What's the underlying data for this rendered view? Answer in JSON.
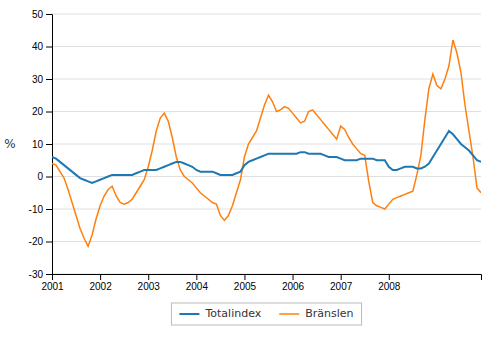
{
  "chart_data": {
    "type": "line",
    "y_label": "%",
    "ylim": [
      -30,
      50
    ],
    "yticks": [
      -30,
      -20,
      -10,
      0,
      10,
      20,
      30,
      40,
      50
    ],
    "grid": true,
    "legend": "bottom",
    "categories": [
      "2001",
      null,
      null,
      null,
      null,
      null,
      null,
      null,
      null,
      null,
      null,
      null,
      "2002",
      null,
      null,
      null,
      null,
      null,
      null,
      null,
      null,
      null,
      null,
      null,
      "2003",
      null,
      null,
      null,
      null,
      null,
      null,
      null,
      null,
      null,
      null,
      null,
      "2004",
      null,
      null,
      null,
      null,
      null,
      null,
      null,
      null,
      null,
      null,
      null,
      "2005",
      null,
      null,
      null,
      null,
      null,
      null,
      null,
      null,
      null,
      null,
      null,
      "2006",
      null,
      null,
      null,
      null,
      null,
      null,
      null,
      null,
      null,
      null,
      null,
      "2007",
      null,
      null,
      null,
      null,
      null,
      null,
      null,
      null,
      null,
      null,
      null,
      "2008",
      null,
      null,
      null,
      null,
      null,
      null,
      null,
      null,
      null,
      null,
      null,
      null,
      null,
      null,
      null,
      null,
      null,
      null,
      null,
      null,
      null,
      null,
      null
    ],
    "series": [
      {
        "name": "Totalindex",
        "values": [
          6.0,
          5.5,
          4.5,
          3.5,
          2.5,
          1.5,
          0.5,
          -0.5,
          -1.0,
          -1.5,
          -2.0,
          -1.5,
          -1.0,
          -0.5,
          0.0,
          0.5,
          0.5,
          0.5,
          0.5,
          0.5,
          0.5,
          1.0,
          1.5,
          2.0,
          2.0,
          2.0,
          2.0,
          2.5,
          3.0,
          3.5,
          4.0,
          4.5,
          4.5,
          4.0,
          3.5,
          3.0,
          2.0,
          1.5,
          1.5,
          1.5,
          1.5,
          1.0,
          0.5,
          0.5,
          0.5,
          0.5,
          1.0,
          1.5,
          3.5,
          4.5,
          5.0,
          5.5,
          6.0,
          6.5,
          7.0,
          7.0,
          7.0,
          7.0,
          7.0,
          7.0,
          7.0,
          7.0,
          7.5,
          7.5,
          7.0,
          7.0,
          7.0,
          7.0,
          6.5,
          6.0,
          6.0,
          6.0,
          5.5,
          5.0,
          5.0,
          5.0,
          5.0,
          5.5,
          5.5,
          5.5,
          5.5,
          5.0,
          5.0,
          5.0,
          3.0,
          2.0,
          2.0,
          2.5,
          3.0,
          3.0,
          3.0,
          2.5,
          2.5,
          3.0,
          4.0,
          6.0,
          8.0,
          10.0,
          12.0,
          14.0,
          13.0,
          11.5,
          10.0,
          9.0,
          8.0,
          6.5,
          5.0,
          4.5
        ]
      },
      {
        "name": "Bränslen",
        "values": [
          4.0,
          3.5,
          1.5,
          -0.5,
          -4.0,
          -8.0,
          -12.0,
          -16.0,
          -19.0,
          -21.5,
          -18.0,
          -13.0,
          -9.0,
          -6.0,
          -4.0,
          -3.0,
          -6.0,
          -8.0,
          -8.5,
          -8.0,
          -7.0,
          -5.0,
          -3.0,
          -1.0,
          3.0,
          8.0,
          14.0,
          18.0,
          19.5,
          17.0,
          12.0,
          6.0,
          2.0,
          0.0,
          -1.0,
          -2.0,
          -3.5,
          -5.0,
          -6.0,
          -7.0,
          -8.0,
          -8.5,
          -12.0,
          -13.5,
          -12.0,
          -9.0,
          -5.0,
          -1.0,
          6.0,
          10.0,
          12.0,
          14.0,
          18.0,
          22.0,
          25.0,
          23.0,
          20.0,
          20.5,
          21.5,
          21.0,
          19.5,
          18.0,
          16.5,
          17.0,
          20.0,
          20.5,
          19.0,
          17.5,
          16.0,
          14.5,
          13.0,
          11.5,
          15.5,
          14.5,
          12.0,
          10.0,
          8.5,
          7.0,
          6.5,
          -1.5,
          -8.0,
          -9.0,
          -9.5,
          -10.0,
          -8.5,
          -7.0,
          -6.5,
          -6.0,
          -5.5,
          -5.0,
          -4.5,
          0.5,
          6.5,
          17.5,
          27.0,
          31.5,
          28.0,
          27.0,
          30.0,
          34.0,
          42.0,
          38.0,
          32.0,
          22.0,
          14.0,
          6.0,
          -3.5,
          -5.0
        ]
      }
    ]
  }
}
